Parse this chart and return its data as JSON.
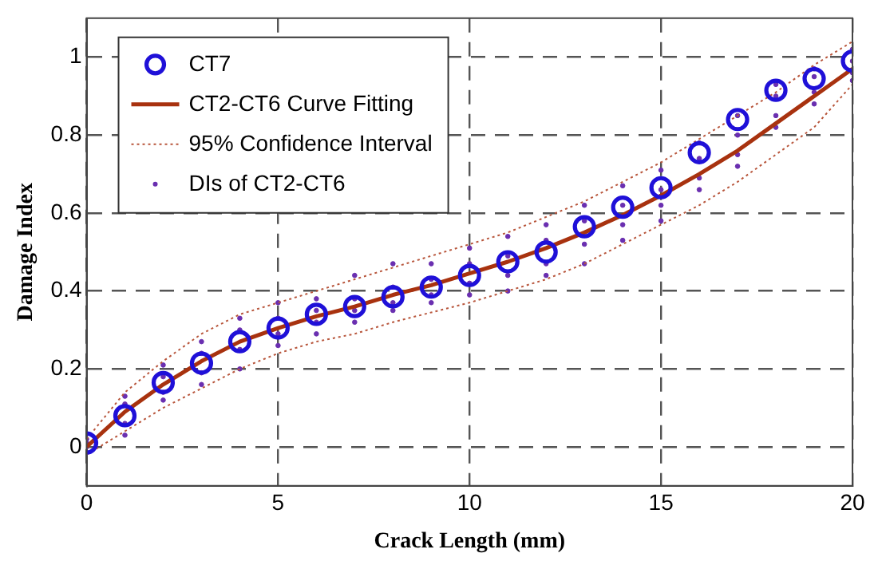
{
  "chart_data": {
    "type": "scatter",
    "xlabel": "Crack Length (mm)",
    "ylabel": "Damage Index",
    "x": [
      0,
      1,
      2,
      3,
      4,
      5,
      6,
      7,
      8,
      9,
      10,
      11,
      12,
      13,
      14,
      15,
      16,
      17,
      18,
      19,
      20
    ],
    "xlim": [
      0,
      20
    ],
    "xticks": [
      0,
      5,
      10,
      15,
      20
    ],
    "ylim": [
      -0.1,
      1.1
    ],
    "yticks": [
      0,
      0.2,
      0.4,
      0.6,
      0.8,
      1
    ],
    "grid": true,
    "legend": "top left",
    "series": [
      {
        "name": "CT7",
        "type": "scatter",
        "marker": "circle",
        "color": "#1f10d8",
        "values": [
          0.01,
          0.08,
          0.165,
          0.215,
          0.27,
          0.305,
          0.34,
          0.36,
          0.385,
          0.41,
          0.44,
          0.475,
          0.5,
          0.565,
          0.615,
          0.665,
          0.755,
          0.84,
          0.915,
          0.945,
          0.99
        ]
      },
      {
        "name": "CT2-CT6 Curve Fitting",
        "type": "line",
        "marker": "none",
        "line_style": "solid",
        "color": "#a8320f",
        "values": [
          0,
          0.09,
          0.16,
          0.22,
          0.27,
          0.305,
          0.335,
          0.36,
          0.39,
          0.415,
          0.445,
          0.475,
          0.51,
          0.55,
          0.595,
          0.645,
          0.7,
          0.76,
          0.83,
          0.9,
          0.97
        ]
      },
      {
        "name": "95% Confidence Interval",
        "type": "line",
        "marker": "none",
        "line_style": "dotted",
        "color": "#b8563c",
        "values": [
          0.02,
          0.14,
          0.22,
          0.29,
          0.34,
          0.37,
          0.4,
          0.43,
          0.46,
          0.49,
          0.52,
          0.55,
          0.59,
          0.63,
          0.68,
          0.73,
          0.79,
          0.85,
          0.91,
          0.98,
          1.04
        ]
      },
      {
        "type": "line",
        "marker": "none",
        "line_style": "dotted",
        "color": "#b8563c",
        "values": [
          -0.02,
          0.04,
          0.1,
          0.15,
          0.2,
          0.24,
          0.27,
          0.29,
          0.32,
          0.345,
          0.37,
          0.4,
          0.43,
          0.47,
          0.52,
          0.57,
          0.62,
          0.68,
          0.75,
          0.82,
          0.93
        ]
      },
      {
        "name": "DIs of CT2-CT6",
        "type": "scatter",
        "marker": "circle",
        "color": "#6a2fb0",
        "x": [
          0,
          0,
          0,
          1,
          1,
          1,
          1,
          2,
          2,
          2,
          2,
          3,
          3,
          3,
          3,
          4,
          4,
          4,
          4,
          5,
          5,
          5,
          5,
          6,
          6,
          6,
          6,
          7,
          7,
          7,
          7,
          8,
          8,
          8,
          8,
          9,
          9,
          9,
          9,
          10,
          10,
          10,
          10,
          11,
          11,
          11,
          11,
          12,
          12,
          12,
          12,
          13,
          13,
          13,
          13,
          14,
          14,
          14,
          14,
          15,
          15,
          15,
          15,
          16,
          16,
          16,
          16,
          17,
          17,
          17,
          17,
          18,
          18,
          18,
          18,
          19,
          19,
          19,
          19,
          20,
          20,
          20,
          20
        ],
        "values": [
          0,
          0.01,
          0.02,
          0.03,
          0.06,
          0.11,
          0.13,
          0.12,
          0.14,
          0.18,
          0.21,
          0.16,
          0.19,
          0.24,
          0.27,
          0.2,
          0.25,
          0.3,
          0.33,
          0.26,
          0.29,
          0.33,
          0.37,
          0.29,
          0.32,
          0.35,
          0.38,
          0.32,
          0.35,
          0.38,
          0.44,
          0.35,
          0.37,
          0.41,
          0.47,
          0.37,
          0.39,
          0.43,
          0.47,
          0.39,
          0.42,
          0.47,
          0.51,
          0.4,
          0.44,
          0.49,
          0.54,
          0.44,
          0.47,
          0.53,
          0.57,
          0.47,
          0.52,
          0.58,
          0.62,
          0.53,
          0.57,
          0.62,
          0.67,
          0.58,
          0.62,
          0.66,
          0.71,
          0.66,
          0.69,
          0.74,
          0.78,
          0.72,
          0.75,
          0.8,
          0.85,
          0.82,
          0.85,
          0.9,
          0.93,
          0.88,
          0.91,
          0.95,
          0.97,
          0.94,
          0.96,
          0.99,
          1.02
        ]
      }
    ]
  }
}
